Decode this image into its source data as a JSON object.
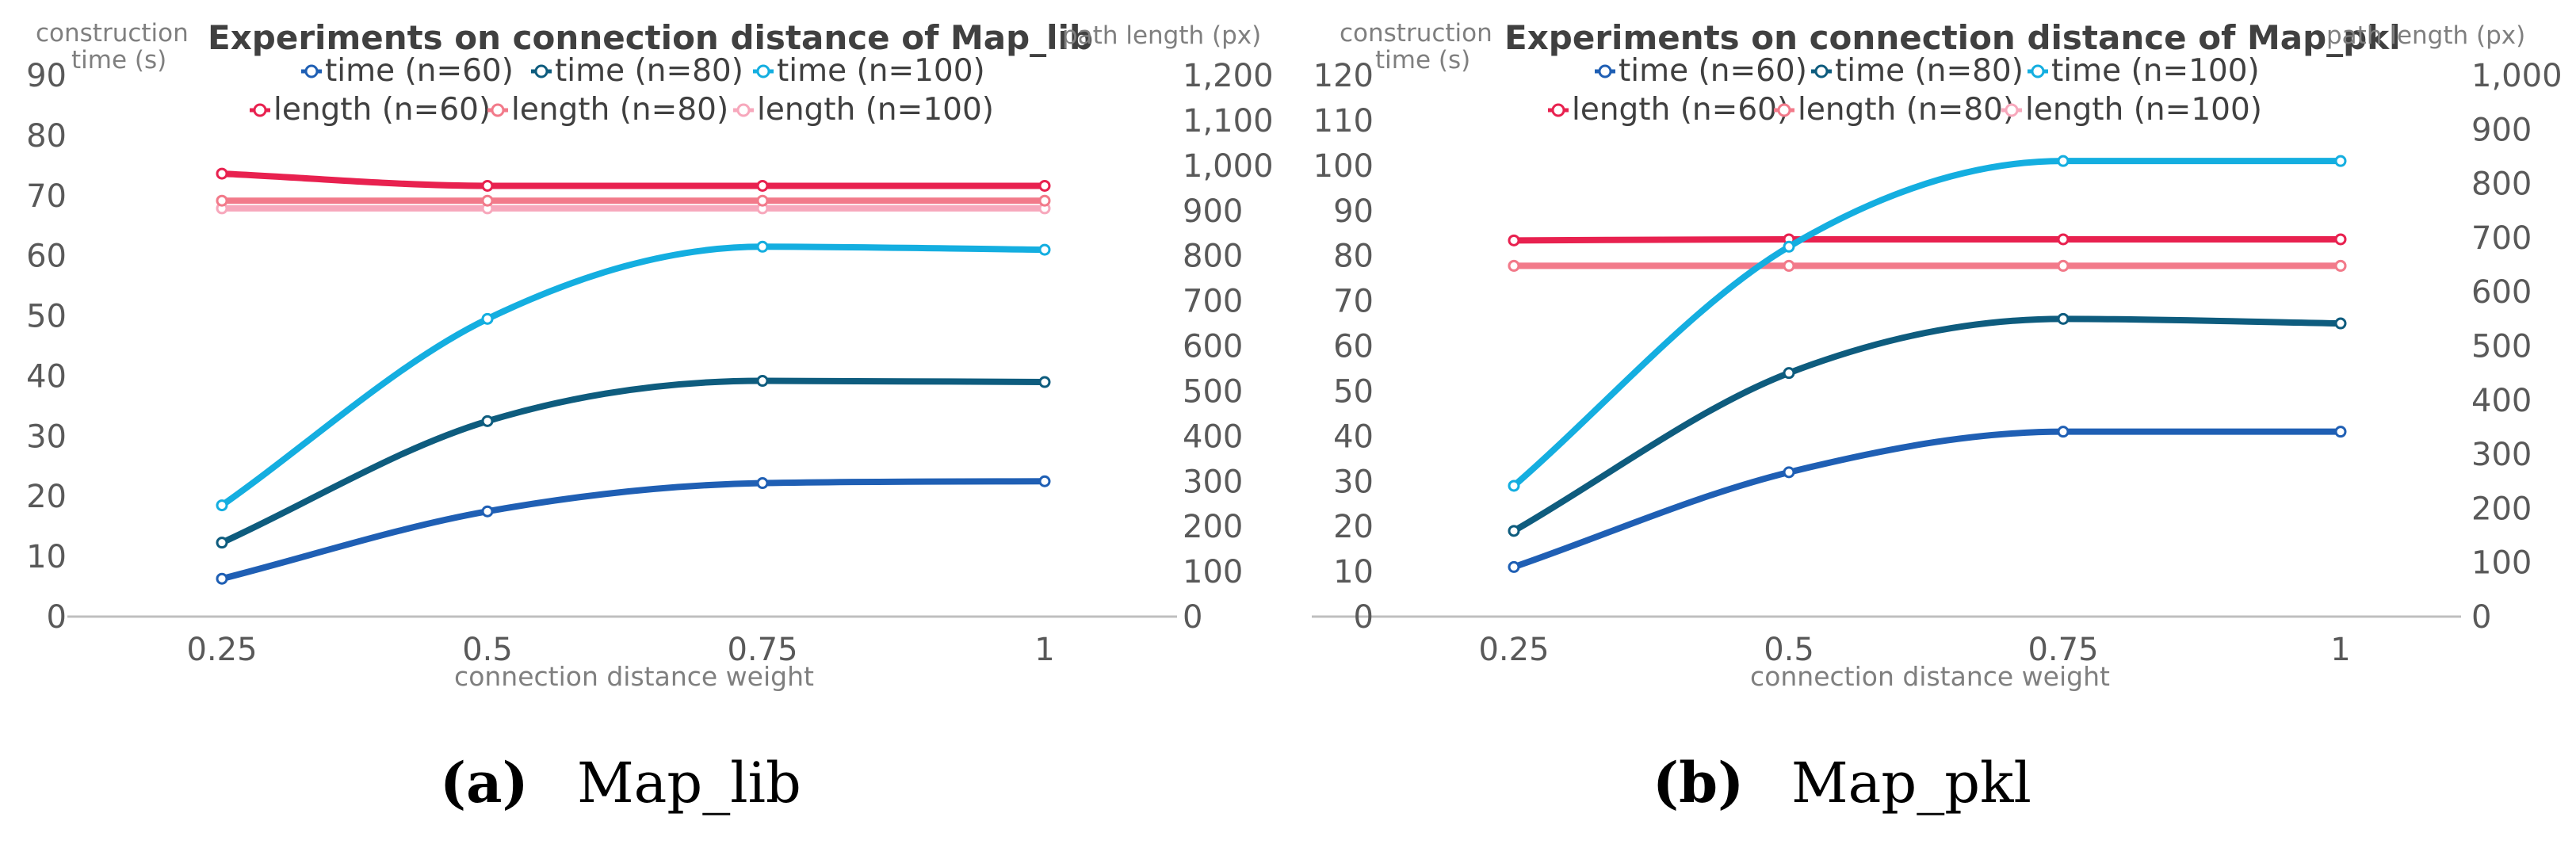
{
  "chart_data": [
    {
      "type": "line",
      "title": "Experiments on connection distance of Map_lib",
      "xlabel": "connection distance weight",
      "ylabel_left_line1": "construction",
      "ylabel_left_line2": "time (s)",
      "ylabel_right": "path length (px)",
      "categories": [
        "0.25",
        "0.5",
        "0.75",
        "1"
      ],
      "ylim_left": [
        0,
        90
      ],
      "yticks_left": [
        "0",
        "10",
        "20",
        "30",
        "40",
        "50",
        "60",
        "70",
        "80",
        "90"
      ],
      "ylim_right": [
        0,
        1200
      ],
      "yticks_right": [
        "0",
        "100",
        "200",
        "300",
        "400",
        "500",
        "600",
        "700",
        "800",
        "900",
        "1,000",
        "1,100",
        "1,200"
      ],
      "series": [
        {
          "name": "time (n=60)",
          "axis": "left",
          "color": "#1f5fb4",
          "values": [
            6.3,
            17.5,
            22.2,
            22.5
          ]
        },
        {
          "name": "time (n=80)",
          "axis": "left",
          "color": "#0e5c7e",
          "values": [
            12.3,
            32.5,
            39.2,
            39.0
          ]
        },
        {
          "name": "time (n=100)",
          "axis": "left",
          "color": "#14aee0",
          "values": [
            18.5,
            49.5,
            61.5,
            61.0
          ]
        },
        {
          "name": "length (n=60)",
          "axis": "right",
          "color": "#e8214f",
          "values": [
            982,
            955,
            955,
            955
          ]
        },
        {
          "name": "length (n=80)",
          "axis": "right",
          "color": "#f27a8a",
          "values": [
            922,
            922,
            922,
            922
          ]
        },
        {
          "name": "length (n=100)",
          "axis": "right",
          "color": "#f7a8bc",
          "values": [
            905,
            905,
            905,
            905
          ]
        }
      ],
      "caption_letter": "(a)",
      "caption_text": "Map_lib"
    },
    {
      "type": "line",
      "title": "Experiments on connection distance of Map_pkl",
      "xlabel": "connection distance weight",
      "ylabel_left_line1": "construction",
      "ylabel_left_line2": "time (s)",
      "ylabel_right": "path length (px)",
      "categories": [
        "0.25",
        "0.5",
        "0.75",
        "1"
      ],
      "ylim_left": [
        0,
        120
      ],
      "yticks_left": [
        "0",
        "10",
        "20",
        "30",
        "40",
        "50",
        "60",
        "70",
        "80",
        "90",
        "100",
        "110",
        "120"
      ],
      "ylim_right": [
        0,
        1000
      ],
      "yticks_right": [
        "0",
        "100",
        "200",
        "300",
        "400",
        "500",
        "600",
        "700",
        "800",
        "900",
        "1,000"
      ],
      "series": [
        {
          "name": "time (n=60)",
          "axis": "left",
          "color": "#1f5fb4",
          "values": [
            11,
            32,
            41,
            41
          ]
        },
        {
          "name": "time (n=80)",
          "axis": "left",
          "color": "#0e5c7e",
          "values": [
            19,
            54,
            66,
            65
          ]
        },
        {
          "name": "time (n=100)",
          "axis": "left",
          "color": "#14aee0",
          "values": [
            29,
            82,
            101,
            101
          ]
        },
        {
          "name": "length (n=60)",
          "axis": "right",
          "color": "#e8214f",
          "values": [
            695,
            697,
            697,
            697
          ]
        },
        {
          "name": "length (n=80)",
          "axis": "right",
          "color": "#f27a8a",
          "values": [
            648,
            648,
            648,
            648
          ]
        },
        {
          "name": "length (n=100)",
          "axis": "right",
          "color": "#f7a8bc",
          "values": [
            648,
            648,
            648,
            648
          ]
        }
      ],
      "caption_letter": "(b)",
      "caption_text": "Map_pkl"
    }
  ]
}
